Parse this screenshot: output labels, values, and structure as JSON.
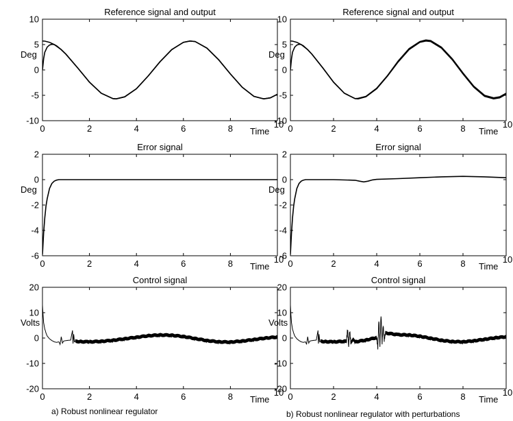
{
  "captions": {
    "left": "a) Robust nonlinear regulator",
    "right": "b) Robust nonlinear regulator with perturbations"
  },
  "chart_data": [
    {
      "type": "line",
      "id": "a-ref",
      "title": "Reference signal and output",
      "xlabel": "Time",
      "ylabel": "Deg",
      "xlim": [
        0,
        10
      ],
      "ylim": [
        -10,
        10
      ],
      "xticks": [
        0,
        2,
        4,
        6,
        8,
        10
      ],
      "yticks": [
        10,
        5,
        0,
        -5,
        -10
      ],
      "grid": false,
      "series": [
        {
          "values_note": "",
          "x": [
            0,
            0.1,
            0.3,
            0.5,
            0.8,
            1,
            1.5,
            2,
            2.5,
            3,
            3.14,
            3.5,
            4,
            4.5,
            5,
            5.5,
            6,
            6.28,
            6.5,
            7,
            7.5,
            8,
            8.5,
            9,
            9.42,
            9.7,
            10
          ],
          "y": [
            5.7,
            5.68,
            5.45,
            5.0,
            4.0,
            3.1,
            0.4,
            -2.4,
            -4.6,
            -5.65,
            -5.7,
            -5.3,
            -3.7,
            -1.2,
            1.6,
            4.0,
            5.45,
            5.7,
            5.6,
            4.3,
            2.0,
            -0.8,
            -3.4,
            -5.2,
            -5.7,
            -5.5,
            -4.8
          ]
        },
        {
          "x": [
            0,
            0.05,
            0.1,
            0.2,
            0.3,
            0.4,
            0.5,
            0.6,
            0.8,
            1,
            1.5,
            2,
            2.5,
            3,
            3.14,
            3.5,
            4,
            4.5,
            5,
            5.5,
            6,
            6.28,
            6.5,
            7,
            7.5,
            8,
            8.5,
            9,
            9.42,
            9.7,
            10
          ],
          "y": [
            0,
            2.2,
            3.5,
            4.5,
            4.9,
            5.05,
            5.0,
            4.75,
            4.0,
            3.1,
            0.4,
            -2.4,
            -4.6,
            -5.65,
            -5.7,
            -5.3,
            -3.7,
            -1.2,
            1.6,
            4.0,
            5.45,
            5.7,
            5.6,
            4.3,
            2.0,
            -0.8,
            -3.4,
            -5.2,
            -5.7,
            -5.5,
            -4.8
          ]
        }
      ]
    },
    {
      "type": "line",
      "id": "a-err",
      "title": "Error signal",
      "xlabel": "Time",
      "ylabel": "Deg",
      "xlim": [
        0,
        10
      ],
      "ylim": [
        -6,
        2
      ],
      "xticks": [
        0,
        2,
        4,
        6,
        8,
        10
      ],
      "yticks": [
        2,
        0,
        -2,
        -4,
        -6
      ],
      "grid": false,
      "series": [
        {
          "x": [
            0,
            0.05,
            0.1,
            0.15,
            0.2,
            0.3,
            0.4,
            0.5,
            0.6,
            0.7,
            1,
            2,
            4,
            6,
            8,
            10
          ],
          "y": [
            -5.9,
            -4.2,
            -3.0,
            -2.1,
            -1.5,
            -0.7,
            -0.3,
            -0.12,
            -0.04,
            0,
            0,
            0,
            0,
            0,
            0,
            0
          ]
        }
      ]
    },
    {
      "type": "line",
      "id": "a-ctl",
      "title": "Control signal",
      "xlabel": "Time",
      "ylabel": "Volts",
      "xlim": [
        0,
        10
      ],
      "ylim": [
        -20,
        20
      ],
      "xticks": [
        0,
        2,
        4,
        6,
        8,
        10
      ],
      "yticks": [
        20,
        10,
        0,
        -10,
        -20
      ],
      "grid": false,
      "noise_amplitude": 0.8,
      "series": [
        {
          "x": [
            0,
            0.02,
            0.05,
            0.1,
            0.15,
            0.2,
            0.3,
            0.4,
            0.5,
            0.6,
            0.7,
            0.75,
            0.8,
            0.85,
            0.9,
            1.0,
            1.2,
            1.28,
            1.3,
            1.33,
            1.36,
            1.4,
            1.6,
            2,
            2.5,
            3,
            3.5,
            4,
            4.5,
            5,
            5.5,
            6,
            6.5,
            7,
            7.5,
            8,
            8.5,
            9,
            9.5,
            10
          ],
          "y": [
            13,
            10,
            6,
            3.5,
            2,
            0.8,
            -0.3,
            -1,
            -1.5,
            -1.7,
            -1.5,
            -2.5,
            0.5,
            -2,
            -1.2,
            -1,
            -0.8,
            3,
            -2.2,
            1.5,
            -1.5,
            -1.3,
            -1.4,
            -1.5,
            -1.3,
            -0.9,
            -0.3,
            0.3,
            0.9,
            1.2,
            1.1,
            0.6,
            -0.2,
            -1.0,
            -1.5,
            -1.6,
            -1.2,
            -0.6,
            0,
            0.4
          ]
        }
      ]
    },
    {
      "type": "line",
      "id": "b-ref",
      "title": "Reference signal and output",
      "xlabel": "Time",
      "ylabel": "Deg",
      "xlim": [
        0,
        10
      ],
      "ylim": [
        -10,
        10
      ],
      "xticks": [
        0,
        2,
        4,
        6,
        8,
        10
      ],
      "yticks": [
        10,
        5,
        0,
        -5,
        -10
      ],
      "grid": false,
      "series": [
        {
          "x": [
            0,
            0.1,
            0.3,
            0.5,
            0.8,
            1,
            1.5,
            2,
            2.5,
            3,
            3.14,
            3.5,
            4,
            4.5,
            5,
            5.5,
            6,
            6.28,
            6.5,
            7,
            7.5,
            8,
            8.5,
            9,
            9.42,
            9.7,
            10
          ],
          "y": [
            5.7,
            5.68,
            5.45,
            5.0,
            4.0,
            3.1,
            0.4,
            -2.4,
            -4.6,
            -5.65,
            -5.7,
            -5.3,
            -3.7,
            -1.2,
            1.6,
            4.0,
            5.45,
            5.7,
            5.6,
            4.3,
            2.0,
            -0.8,
            -3.4,
            -5.2,
            -5.7,
            -5.5,
            -4.8
          ]
        },
        {
          "x": [
            0,
            0.05,
            0.1,
            0.2,
            0.3,
            0.4,
            0.5,
            0.6,
            0.8,
            1,
            1.5,
            2,
            2.5,
            3,
            3.14,
            3.5,
            4,
            4.5,
            5,
            5.5,
            6,
            6.28,
            6.5,
            7,
            7.5,
            8,
            8.5,
            9,
            9.42,
            9.7,
            10
          ],
          "y": [
            0,
            2.2,
            3.5,
            4.5,
            4.9,
            5.05,
            5.0,
            4.75,
            4.0,
            3.1,
            0.4,
            -2.4,
            -4.6,
            -5.65,
            -5.6,
            -5.2,
            -3.6,
            -1.1,
            1.8,
            4.2,
            5.6,
            5.9,
            5.8,
            4.5,
            2.2,
            -0.6,
            -3.2,
            -5.0,
            -5.5,
            -5.3,
            -4.6
          ]
        }
      ]
    },
    {
      "type": "line",
      "id": "b-err",
      "title": "Error signal",
      "xlabel": "Time",
      "ylabel": "Deg",
      "xlim": [
        0,
        10
      ],
      "ylim": [
        -6,
        2
      ],
      "xticks": [
        0,
        2,
        4,
        6,
        8,
        10
      ],
      "yticks": [
        2,
        0,
        -2,
        -4,
        -6
      ],
      "grid": false,
      "series": [
        {
          "x": [
            0,
            0.05,
            0.1,
            0.15,
            0.2,
            0.3,
            0.4,
            0.5,
            0.6,
            0.7,
            1,
            2,
            3,
            3.2,
            3.4,
            3.6,
            3.8,
            4,
            5,
            6,
            7,
            8,
            9,
            10
          ],
          "y": [
            -5.9,
            -4.2,
            -3.0,
            -2.1,
            -1.5,
            -0.7,
            -0.3,
            -0.12,
            -0.04,
            0,
            0,
            0,
            -0.05,
            -0.12,
            -0.18,
            -0.12,
            -0.02,
            0.02,
            0.08,
            0.15,
            0.22,
            0.26,
            0.22,
            0.15
          ]
        }
      ]
    },
    {
      "type": "line",
      "id": "b-ctl",
      "title": "Control signal",
      "xlabel": "Time",
      "ylabel": "Volts",
      "xlim": [
        0,
        10
      ],
      "ylim": [
        -20,
        20
      ],
      "xticks": [
        0,
        2,
        4,
        6,
        8,
        10
      ],
      "yticks": [
        20,
        10,
        0,
        -10,
        -20
      ],
      "grid": false,
      "noise_amplitude": 0.8,
      "series": [
        {
          "x": [
            0,
            0.02,
            0.05,
            0.1,
            0.15,
            0.2,
            0.3,
            0.4,
            0.5,
            0.6,
            0.7,
            0.75,
            0.8,
            0.85,
            0.9,
            1.0,
            1.2,
            1.28,
            1.3,
            1.33,
            1.36,
            1.4,
            1.6,
            2,
            2.5,
            2.6,
            2.65,
            2.7,
            2.75,
            2.8,
            2.9,
            3.0,
            3.5,
            4.0,
            4.05,
            4.1,
            4.15,
            4.2,
            4.25,
            4.3,
            4.35,
            4.4,
            5,
            5.5,
            6,
            6.5,
            7,
            7.5,
            8,
            8.5,
            9,
            9.5,
            10
          ],
          "y": [
            13,
            10,
            6,
            3.5,
            2,
            0.8,
            -0.3,
            -1,
            -1.5,
            -1.7,
            -1.5,
            -2.5,
            0.5,
            -2,
            -1.2,
            -1,
            -0.8,
            3,
            -2.2,
            1.5,
            -1.5,
            -1.3,
            -1.4,
            -1.5,
            -1.3,
            -1.2,
            3.5,
            -3.0,
            2.8,
            -2.0,
            -0.5,
            -1.5,
            -0.8,
            0.2,
            -4,
            7,
            -3,
            9,
            -2,
            5,
            -1,
            2,
            1.3,
            1.2,
            0.7,
            -0.1,
            -0.9,
            -1.4,
            -1.5,
            -1.1,
            -0.5,
            0.1,
            0.5
          ]
        }
      ]
    }
  ]
}
